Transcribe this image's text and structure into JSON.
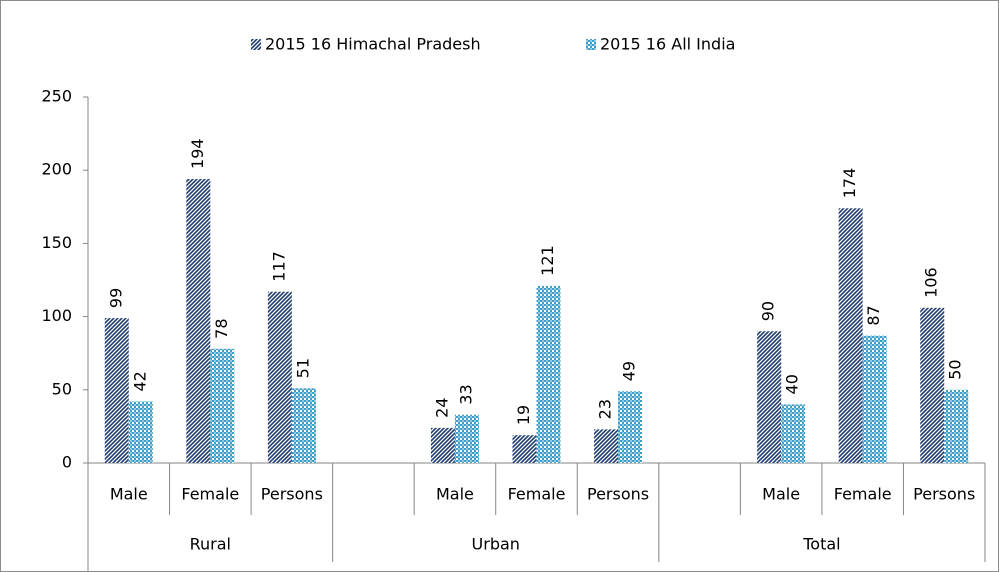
{
  "chart_data": {
    "type": "bar",
    "categories": [
      "Male",
      "Female",
      "Persons",
      null,
      "Male",
      "Female",
      "Persons",
      null,
      "Male",
      "Female",
      "Persons"
    ],
    "groups": [
      "Rural",
      "Urban",
      "Total"
    ],
    "series": [
      {
        "name": "2015 16 Himachal Pradesh",
        "color": "#1f3b73",
        "values": [
          99,
          194,
          117,
          null,
          24,
          19,
          23,
          null,
          90,
          174,
          106
        ]
      },
      {
        "name": "2015 16 All India",
        "color": "#3a9fc8",
        "values": [
          42,
          78,
          51,
          null,
          33,
          121,
          49,
          null,
          40,
          87,
          50
        ]
      }
    ],
    "ylim": [
      0,
      250
    ],
    "yticks": [
      0,
      50,
      100,
      150,
      200,
      250
    ],
    "legend": "top"
  }
}
